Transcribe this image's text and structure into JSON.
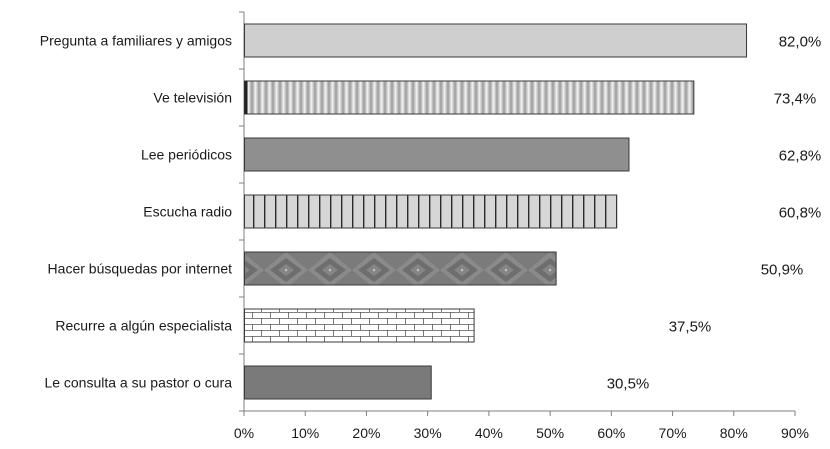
{
  "chart_data": {
    "type": "bar",
    "orientation": "horizontal",
    "categories": [
      "Pregunta a familiares y amigos",
      "Ve televisión",
      "Lee periódicos",
      "Escucha radio",
      "Hacer búsquedas por internet",
      "Recurre a algún especialista",
      "Le consulta a su pastor o cura"
    ],
    "values": [
      82.0,
      73.4,
      62.8,
      60.8,
      50.9,
      37.5,
      30.5
    ],
    "data_labels": [
      "82,0%",
      "73,4%",
      "62,8%",
      "60,8%",
      "50,9%",
      "37,5%",
      "30,5%"
    ],
    "x_ticks": [
      "0%",
      "10%",
      "20%",
      "30%",
      "40%",
      "50%",
      "60%",
      "70%",
      "80%",
      "90%"
    ],
    "xlim": [
      0,
      90
    ],
    "grid": false,
    "legend": "none",
    "title": "",
    "xlabel": "",
    "ylabel": "",
    "bar_styles": [
      {
        "fill": "#cfcfcf",
        "pattern": "solid"
      },
      {
        "fill": "#e6e6e6",
        "pattern": "vertical-gradient-stripes"
      },
      {
        "fill": "#8f8f8f",
        "pattern": "solid"
      },
      {
        "fill": "#d6d6d6",
        "pattern": "vertical-lines"
      },
      {
        "fill": "#777777",
        "pattern": "diamond-texture"
      },
      {
        "fill": "#ffffff",
        "pattern": "brick"
      },
      {
        "fill": "#7a7a7a",
        "pattern": "solid"
      }
    ]
  }
}
